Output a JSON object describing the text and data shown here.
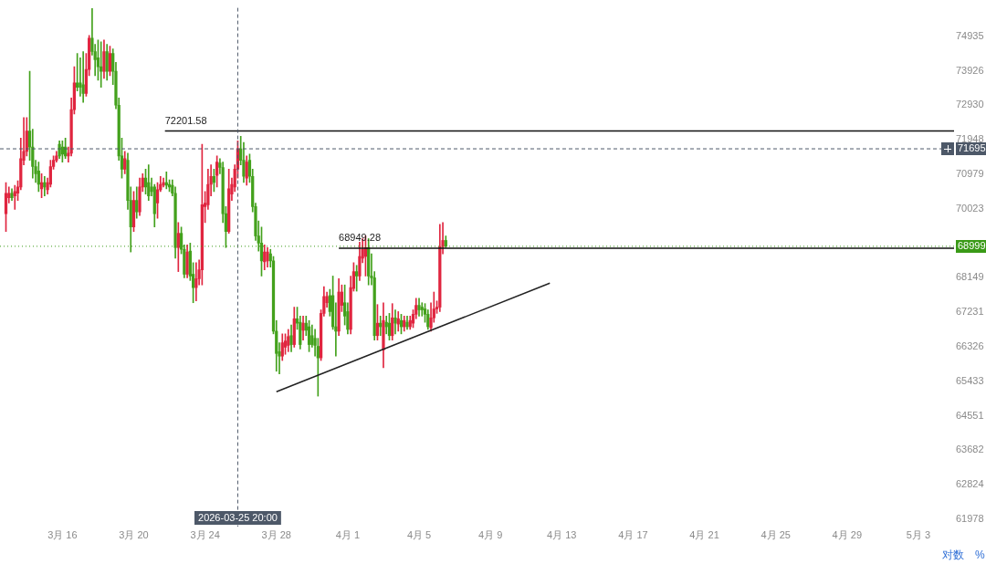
{
  "chart_data": {
    "type": "candlestick",
    "x": [
      "2026-03-12T20:00",
      "2026-03-13T00:00",
      "2026-03-13T04:00",
      "2026-03-13T08:00",
      "2026-03-13T12:00",
      "2026-03-13T16:00",
      "2026-03-13T20:00",
      "2026-03-14T00:00",
      "2026-03-14T04:00",
      "2026-03-14T08:00",
      "2026-03-14T12:00",
      "2026-03-14T16:00",
      "2026-03-14T20:00",
      "2026-03-15T00:00",
      "2026-03-15T04:00",
      "2026-03-15T08:00",
      "2026-03-15T12:00",
      "2026-03-15T16:00",
      "2026-03-15T20:00",
      "2026-03-16T00:00",
      "2026-03-16T04:00",
      "2026-03-16T08:00",
      "2026-03-16T12:00",
      "2026-03-16T16:00",
      "2026-03-16T20:00",
      "2026-03-17T00:00",
      "2026-03-17T04:00",
      "2026-03-17T08:00",
      "2026-03-17T12:00",
      "2026-03-17T16:00",
      "2026-03-17T20:00",
      "2026-03-18T00:00",
      "2026-03-18T04:00",
      "2026-03-18T08:00",
      "2026-03-18T12:00",
      "2026-03-18T16:00",
      "2026-03-18T20:00",
      "2026-03-19T00:00",
      "2026-03-19T04:00",
      "2026-03-19T08:00",
      "2026-03-19T12:00",
      "2026-03-19T16:00",
      "2026-03-19T20:00",
      "2026-03-20T00:00",
      "2026-03-20T04:00",
      "2026-03-20T08:00",
      "2026-03-20T12:00",
      "2026-03-20T16:00",
      "2026-03-20T20:00",
      "2026-03-21T00:00",
      "2026-03-21T04:00",
      "2026-03-21T08:00",
      "2026-03-21T12:00",
      "2026-03-21T16:00",
      "2026-03-21T20:00",
      "2026-03-22T00:00",
      "2026-03-22T04:00",
      "2026-03-22T08:00",
      "2026-03-22T12:00",
      "2026-03-22T16:00",
      "2026-03-22T20:00",
      "2026-03-23T00:00",
      "2026-03-23T04:00",
      "2026-03-23T08:00",
      "2026-03-23T12:00",
      "2026-03-23T16:00",
      "2026-03-23T20:00",
      "2026-03-24T00:00",
      "2026-03-24T04:00",
      "2026-03-24T08:00",
      "2026-03-24T12:00",
      "2026-03-24T16:00",
      "2026-03-24T20:00",
      "2026-03-25T00:00",
      "2026-03-25T04:00",
      "2026-03-25T08:00",
      "2026-03-25T12:00",
      "2026-03-25T16:00",
      "2026-03-25T20:00",
      "2026-03-26T00:00",
      "2026-03-26T04:00",
      "2026-03-26T08:00",
      "2026-03-26T12:00",
      "2026-03-26T16:00",
      "2026-03-26T20:00",
      "2026-03-27T00:00",
      "2026-03-27T04:00",
      "2026-03-27T08:00",
      "2026-03-27T12:00",
      "2026-03-27T16:00",
      "2026-03-27T20:00",
      "2026-03-28T00:00",
      "2026-03-28T04:00",
      "2026-03-28T08:00",
      "2026-03-28T12:00",
      "2026-03-28T16:00",
      "2026-03-28T20:00",
      "2026-03-29T00:00",
      "2026-03-29T04:00",
      "2026-03-29T08:00",
      "2026-03-29T12:00",
      "2026-03-29T16:00",
      "2026-03-29T20:00",
      "2026-03-30T00:00",
      "2026-03-30T04:00",
      "2026-03-30T08:00",
      "2026-03-30T12:00",
      "2026-03-30T16:00",
      "2026-03-30T20:00",
      "2026-03-31T00:00",
      "2026-03-31T04:00",
      "2026-03-31T08:00",
      "2026-03-31T12:00",
      "2026-03-31T16:00",
      "2026-03-31T20:00",
      "2026-04-01T00:00",
      "2026-04-01T04:00",
      "2026-04-01T08:00",
      "2026-04-01T12:00",
      "2026-04-01T16:00",
      "2026-04-01T20:00",
      "2026-04-02T00:00",
      "2026-04-02T04:00",
      "2026-04-02T08:00",
      "2026-04-02T12:00",
      "2026-04-02T16:00",
      "2026-04-02T20:00",
      "2026-04-03T00:00",
      "2026-04-03T04:00",
      "2026-04-03T08:00",
      "2026-04-03T12:00",
      "2026-04-03T16:00",
      "2026-04-03T20:00",
      "2026-04-04T00:00",
      "2026-04-04T04:00",
      "2026-04-04T08:00",
      "2026-04-04T12:00",
      "2026-04-04T16:00",
      "2026-04-04T20:00",
      "2026-04-05T00:00",
      "2026-04-05T04:00",
      "2026-04-05T08:00",
      "2026-04-05T12:00",
      "2026-04-05T16:00",
      "2026-04-05T20:00",
      "2026-04-06T00:00",
      "2026-04-06T04:00",
      "2026-04-06T08:00",
      "2026-04-06T12:00"
    ],
    "ohlc": [
      [
        69888,
        70750,
        69401,
        70453
      ],
      [
        70330,
        70626,
        70182,
        70453
      ],
      [
        70453,
        70577,
        70256,
        70330
      ],
      [
        70379,
        70675,
        70010,
        70502
      ],
      [
        70453,
        70799,
        70256,
        70626
      ],
      [
        70626,
        71998,
        70552,
        71421
      ],
      [
        71371,
        72579,
        71246,
        71621
      ],
      [
        71621,
        72579,
        71496,
        72200
      ],
      [
        72200,
        73914,
        71371,
        71746
      ],
      [
        71746,
        72250,
        70873,
        71196
      ],
      [
        71196,
        71371,
        70750,
        70997
      ],
      [
        71072,
        71321,
        70502,
        70700
      ],
      [
        70577,
        70997,
        70330,
        70750
      ],
      [
        70750,
        70923,
        70379,
        70626
      ],
      [
        70552,
        70873,
        70428,
        70750
      ],
      [
        70700,
        71371,
        70626,
        71196
      ],
      [
        71196,
        71496,
        71122,
        71371
      ],
      [
        71371,
        71621,
        71321,
        71496
      ],
      [
        71822,
        71922,
        71421,
        71496
      ],
      [
        71746,
        71922,
        71321,
        71546
      ],
      [
        71746,
        71998,
        71421,
        71496
      ],
      [
        71496,
        71746,
        71321,
        71571
      ],
      [
        71571,
        73141,
        71496,
        72808
      ],
      [
        72808,
        74044,
        72681,
        73578
      ],
      [
        73578,
        74435,
        73347,
        73449
      ],
      [
        73578,
        74304,
        73193,
        73449
      ],
      [
        73526,
        74488,
        73013,
        73270
      ],
      [
        73270,
        74435,
        73193,
        73966
      ],
      [
        73966,
        74961,
        73784,
        74882
      ],
      [
        74882,
        75759,
        74382,
        74488
      ],
      [
        74488,
        74700,
        73784,
        74252
      ],
      [
        74304,
        74829,
        73655,
        74044
      ],
      [
        74044,
        74777,
        73449,
        73914
      ],
      [
        73914,
        74829,
        73706,
        74488
      ],
      [
        74488,
        74700,
        73655,
        73914
      ],
      [
        73914,
        74647,
        73784,
        74435
      ],
      [
        74435,
        74568,
        73526,
        73914
      ],
      [
        73914,
        74174,
        72834,
        72936
      ],
      [
        72936,
        73141,
        71371,
        71496
      ],
      [
        71496,
        71998,
        70873,
        71122
      ],
      [
        71122,
        71621,
        70997,
        71421
      ],
      [
        71371,
        71571,
        70010,
        70256
      ],
      [
        70256,
        70626,
        68845,
        69523
      ],
      [
        69523,
        70502,
        69401,
        70256
      ],
      [
        70256,
        70626,
        69766,
        69937
      ],
      [
        69937,
        70873,
        69839,
        70626
      ],
      [
        70626,
        70997,
        70502,
        70873
      ],
      [
        70873,
        71122,
        70428,
        70626
      ],
      [
        70750,
        71246,
        70256,
        70379
      ],
      [
        70626,
        70873,
        70379,
        70502
      ],
      [
        70626,
        70700,
        69523,
        69888
      ],
      [
        70182,
        70750,
        69766,
        70552
      ],
      [
        70552,
        70923,
        70502,
        70700
      ],
      [
        70675,
        70873,
        70626,
        70750
      ],
      [
        70750,
        71047,
        70577,
        70675
      ],
      [
        70700,
        70824,
        70502,
        70626
      ],
      [
        70675,
        70824,
        70379,
        70453
      ],
      [
        70453,
        70626,
        68676,
        68965
      ],
      [
        68965,
        69644,
        68316,
        69352
      ],
      [
        69352,
        69523,
        68796,
        68917
      ],
      [
        68917,
        69037,
        68149,
        68245
      ],
      [
        68245,
        69037,
        68149,
        68845
      ],
      [
        68869,
        69086,
        68077,
        68197
      ],
      [
        68245,
        68556,
        67485,
        67888
      ],
      [
        67888,
        68556,
        67532,
        68125
      ],
      [
        68125,
        68628,
        67959,
        68364
      ],
      [
        68364,
        71822,
        67959,
        70133
      ],
      [
        70084,
        70502,
        69644,
        70182
      ],
      [
        70133,
        71122,
        70010,
        70700
      ],
      [
        70700,
        71246,
        70379,
        70923
      ],
      [
        70923,
        71122,
        70502,
        70750
      ],
      [
        70948,
        71496,
        70626,
        71321
      ],
      [
        71296,
        71421,
        70997,
        71171
      ],
      [
        71171,
        71321,
        69644,
        69888
      ],
      [
        69888,
        70084,
        68965,
        69401
      ],
      [
        69401,
        71122,
        69352,
        70577
      ],
      [
        70428,
        70873,
        70256,
        70700
      ],
      [
        70626,
        71246,
        70502,
        71122
      ],
      [
        71122,
        71922,
        70873,
        71696
      ],
      [
        71696,
        72049,
        71246,
        71371
      ],
      [
        71371,
        71872,
        70750,
        70923
      ],
      [
        70873,
        71496,
        70675,
        71321
      ],
      [
        71371,
        71546,
        70750,
        70923
      ],
      [
        70923,
        71122,
        69937,
        70084
      ],
      [
        70084,
        70182,
        69158,
        69280
      ],
      [
        69280,
        69693,
        68869,
        69086
      ],
      [
        69086,
        69523,
        68197,
        68604
      ],
      [
        68580,
        69037,
        68364,
        68845
      ],
      [
        68604,
        68965,
        68436,
        68845
      ],
      [
        68796,
        68917,
        68436,
        68604
      ],
      [
        68604,
        68724,
        66664,
        66734
      ],
      [
        66734,
        67015,
        65692,
        66153
      ],
      [
        66199,
        66431,
        65623,
        66084
      ],
      [
        66084,
        66664,
        65969,
        66431
      ],
      [
        66315,
        66664,
        66130,
        66478
      ],
      [
        66362,
        66781,
        66199,
        66594
      ],
      [
        66618,
        66898,
        66199,
        66384
      ],
      [
        66384,
        67368,
        66315,
        67062
      ],
      [
        67062,
        67368,
        66781,
        66945
      ],
      [
        66968,
        67132,
        66269,
        66384
      ],
      [
        66758,
        67132,
        66501,
        66945
      ],
      [
        66945,
        67132,
        66618,
        66758
      ],
      [
        66851,
        67015,
        66199,
        66384
      ],
      [
        66618,
        66898,
        66315,
        66384
      ],
      [
        66548,
        66781,
        66084,
        66362
      ],
      [
        66338,
        66548,
        65052,
        66038
      ],
      [
        66038,
        67297,
        65969,
        67203
      ],
      [
        67203,
        67912,
        67132,
        67651
      ],
      [
        67485,
        67769,
        67368,
        67651
      ],
      [
        67675,
        67841,
        67132,
        67250
      ],
      [
        67675,
        68197,
        66781,
        66851
      ],
      [
        66851,
        67485,
        66084,
        66734
      ],
      [
        66734,
        68125,
        66618,
        67769
      ],
      [
        67415,
        67959,
        67250,
        67769
      ],
      [
        67485,
        67959,
        66898,
        67132
      ],
      [
        67250,
        67485,
        66664,
        66781
      ],
      [
        66781,
        68197,
        66664,
        67888
      ],
      [
        67864,
        68556,
        67793,
        68316
      ],
      [
        68316,
        68484,
        67793,
        68197
      ],
      [
        68197,
        69110,
        68077,
        68724
      ],
      [
        68676,
        69207,
        68556,
        68917
      ],
      [
        68724,
        69280,
        68197,
        68965
      ],
      [
        68965,
        69207,
        67959,
        68197
      ],
      [
        68197,
        68796,
        67959,
        68149
      ],
      [
        68149,
        68316,
        66501,
        66618
      ],
      [
        66618,
        67437,
        66501,
        66945
      ],
      [
        66945,
        67132,
        66618,
        66851
      ],
      [
        66245,
        67485,
        65784,
        67015
      ],
      [
        66968,
        67132,
        66664,
        66851
      ],
      [
        66945,
        67203,
        66501,
        66618
      ],
      [
        66618,
        67462,
        66501,
        67085
      ],
      [
        67085,
        67297,
        66664,
        66945
      ],
      [
        66921,
        67250,
        66734,
        67062
      ],
      [
        67015,
        67179,
        66664,
        66851
      ],
      [
        66851,
        67132,
        66734,
        67015
      ],
      [
        66968,
        67132,
        66781,
        66851
      ],
      [
        66851,
        67132,
        66781,
        67015
      ],
      [
        66945,
        67297,
        66828,
        67179
      ],
      [
        67179,
        67603,
        67062,
        67415
      ],
      [
        67415,
        67603,
        67132,
        67297
      ],
      [
        67368,
        67485,
        67132,
        67297
      ],
      [
        67321,
        67462,
        66968,
        67179
      ],
      [
        67179,
        67297,
        66781,
        66851
      ],
      [
        66828,
        67485,
        66734,
        67085
      ],
      [
        67085,
        67769,
        66968,
        67321
      ],
      [
        67321,
        67532,
        67203,
        67368
      ],
      [
        67368,
        69595,
        67250,
        68990
      ],
      [
        68990,
        69644,
        68796,
        69158
      ],
      [
        69158,
        69280,
        68965,
        68999
      ]
    ],
    "colors": [
      "#e0253f",
      "#e0253f",
      "#43a11c",
      "#e0253f",
      "#e0253f",
      "#e0253f",
      "#e0253f",
      "#e0253f",
      "#43a11c",
      "#43a11c",
      "#43a11c",
      "#43a11c",
      "#e0253f",
      "#43a11c",
      "#e0253f",
      "#e0253f",
      "#e0253f",
      "#e0253f",
      "#43a11c",
      "#43a11c",
      "#43a11c",
      "#e0253f",
      "#e0253f",
      "#e0253f",
      "#43a11c",
      "#43a11c",
      "#43a11c",
      "#e0253f",
      "#e0253f",
      "#43a11c",
      "#43a11c",
      "#43a11c",
      "#43a11c",
      "#e0253f",
      "#43a11c",
      "#e0253f",
      "#43a11c",
      "#43a11c",
      "#43a11c",
      "#43a11c",
      "#e0253f",
      "#43a11c",
      "#43a11c",
      "#e0253f",
      "#43a11c",
      "#e0253f",
      "#e0253f",
      "#43a11c",
      "#43a11c",
      "#43a11c",
      "#43a11c",
      "#e0253f",
      "#e0253f",
      "#e0253f",
      "#43a11c",
      "#43a11c",
      "#43a11c",
      "#43a11c",
      "#e0253f",
      "#43a11c",
      "#43a11c",
      "#e0253f",
      "#43a11c",
      "#43a11c",
      "#e0253f",
      "#e0253f",
      "#e0253f",
      "#e0253f",
      "#e0253f",
      "#e0253f",
      "#43a11c",
      "#e0253f",
      "#43a11c",
      "#43a11c",
      "#43a11c",
      "#e0253f",
      "#e0253f",
      "#e0253f",
      "#e0253f",
      "#43a11c",
      "#43a11c",
      "#e0253f",
      "#43a11c",
      "#43a11c",
      "#43a11c",
      "#43a11c",
      "#43a11c",
      "#e0253f",
      "#e0253f",
      "#43a11c",
      "#43a11c",
      "#43a11c",
      "#43a11c",
      "#e0253f",
      "#e0253f",
      "#e0253f",
      "#43a11c",
      "#e0253f",
      "#43a11c",
      "#43a11c",
      "#e0253f",
      "#43a11c",
      "#43a11c",
      "#43a11c",
      "#43a11c",
      "#43a11c",
      "#e0253f",
      "#e0253f",
      "#e0253f",
      "#43a11c",
      "#43a11c",
      "#43a11c",
      "#e0253f",
      "#e0253f",
      "#43a11c",
      "#43a11c",
      "#e0253f",
      "#e0253f",
      "#43a11c",
      "#e0253f",
      "#e0253f",
      "#e0253f",
      "#43a11c",
      "#43a11c",
      "#43a11c",
      "#e0253f",
      "#43a11c",
      "#e0253f",
      "#43a11c",
      "#43a11c",
      "#e0253f",
      "#43a11c",
      "#e0253f",
      "#43a11c",
      "#e0253f",
      "#43a11c",
      "#e0253f",
      "#e0253f",
      "#e0253f",
      "#43a11c",
      "#43a11c",
      "#43a11c",
      "#43a11c",
      "#e0253f",
      "#e0253f",
      "#e0253f",
      "#e0253f",
      "#e0253f",
      "#43a11c"
    ],
    "series": [
      {
        "type": "line",
        "x": [
          "2026-03-21T18:00",
          "2026-05-05T00:00"
        ],
        "values": [
          72201.58,
          72201.58
        ],
        "color": "#111111"
      },
      {
        "type": "line",
        "x": [
          "2026-03-31T12:00",
          "2026-05-05T00:00"
        ],
        "values": [
          68949.28,
          68949.28
        ],
        "color": "#111111"
      },
      {
        "type": "line",
        "x": [
          "2026-03-28T00:00",
          "2026-04-12T08:00"
        ],
        "values": [
          65165,
          68006
        ],
        "color": "#222222"
      }
    ],
    "xlim": [
      "2026-03-12T12:00",
      "2026-05-05T00:00"
    ],
    "xticks": [
      {
        "value": "2026-03-16",
        "label": "3月 16"
      },
      {
        "value": "2026-03-20",
        "label": "3月 20"
      },
      {
        "value": "2026-03-24",
        "label": "3月 24"
      },
      {
        "value": "2026-03-28",
        "label": "3月 28"
      },
      {
        "value": "2026-04-01",
        "label": "4月 1"
      },
      {
        "value": "2026-04-05",
        "label": "4月 5"
      },
      {
        "value": "2026-04-09",
        "label": "4月 9"
      },
      {
        "value": "2026-04-13",
        "label": "4月 13"
      },
      {
        "value": "2026-04-17",
        "label": "4月 17"
      },
      {
        "value": "2026-04-21",
        "label": "4月 21"
      },
      {
        "value": "2026-04-25",
        "label": "4月 25"
      },
      {
        "value": "2026-04-29",
        "label": "4月 29"
      },
      {
        "value": "2026-05-03",
        "label": "5月 3"
      }
    ],
    "ylim": [
      61800,
      75780
    ],
    "yticks": [
      74935,
      73926,
      72930,
      71948,
      70979,
      70023,
      68149,
      67231,
      66326,
      65433,
      64551,
      63682,
      62824,
      61978
    ],
    "log": true,
    "marker": "none",
    "ref_lines": [
      {
        "axis": "x",
        "value": "2026-03-25T20:00",
        "label": "2026-03-25 20:00",
        "color": "#4d5868",
        "line_style": "dashed"
      },
      {
        "axis": "y",
        "value": 71695,
        "label": "71695",
        "color": "#4d5868",
        "line_style": "dashed"
      },
      {
        "axis": "y",
        "value": 68999,
        "label": "68999",
        "color": "#3a9a17",
        "line_style": "dotted"
      }
    ],
    "annotations": [
      {
        "text": "72201.58",
        "x": "2026-03-21T18:00",
        "y": 72201.58
      },
      {
        "text": "68949.28",
        "x": "2026-03-31T12:00",
        "y": 68949.28
      },
      "对数",
      "%"
    ]
  }
}
